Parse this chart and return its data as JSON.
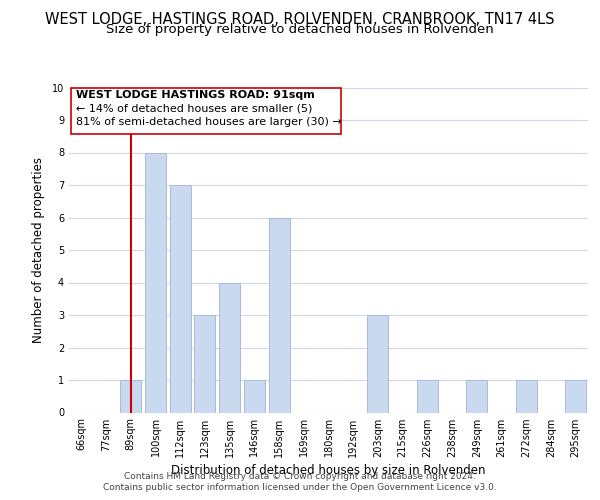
{
  "title": "WEST LODGE, HASTINGS ROAD, ROLVENDEN, CRANBROOK, TN17 4LS",
  "subtitle": "Size of property relative to detached houses in Rolvenden",
  "xlabel": "Distribution of detached houses by size in Rolvenden",
  "ylabel": "Number of detached properties",
  "categories": [
    "66sqm",
    "77sqm",
    "89sqm",
    "100sqm",
    "112sqm",
    "123sqm",
    "135sqm",
    "146sqm",
    "158sqm",
    "169sqm",
    "180sqm",
    "192sqm",
    "203sqm",
    "215sqm",
    "226sqm",
    "238sqm",
    "249sqm",
    "261sqm",
    "272sqm",
    "284sqm",
    "295sqm"
  ],
  "values": [
    0,
    0,
    1,
    8,
    7,
    3,
    4,
    1,
    6,
    0,
    0,
    0,
    3,
    0,
    1,
    0,
    1,
    0,
    1,
    0,
    1
  ],
  "bar_color": "#c9d9f0",
  "bar_edge_color": "#aabbdd",
  "highlight_index": 2,
  "highlight_color": "#cc0000",
  "ylim": [
    0,
    10
  ],
  "yticks": [
    0,
    1,
    2,
    3,
    4,
    5,
    6,
    7,
    8,
    9,
    10
  ],
  "annotation_title": "WEST LODGE HASTINGS ROAD: 91sqm",
  "annotation_line1": "← 14% of detached houses are smaller (5)",
  "annotation_line2": "81% of semi-detached houses are larger (30) →",
  "footer1": "Contains HM Land Registry data © Crown copyright and database right 2024.",
  "footer2": "Contains public sector information licensed under the Open Government Licence v3.0.",
  "background_color": "#ffffff",
  "grid_color": "#d0d8e8",
  "title_fontsize": 10.5,
  "subtitle_fontsize": 9.5,
  "axis_label_fontsize": 8.5,
  "tick_fontsize": 7,
  "annotation_fontsize": 8,
  "footer_fontsize": 6.5
}
